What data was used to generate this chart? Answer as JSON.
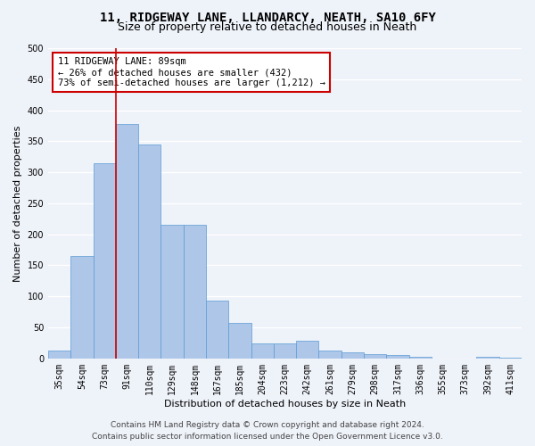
{
  "title": "11, RIDGEWAY LANE, LLANDARCY, NEATH, SA10 6FY",
  "subtitle": "Size of property relative to detached houses in Neath",
  "xlabel": "Distribution of detached houses by size in Neath",
  "ylabel": "Number of detached properties",
  "categories": [
    "35sqm",
    "54sqm",
    "73sqm",
    "91sqm",
    "110sqm",
    "129sqm",
    "148sqm",
    "167sqm",
    "185sqm",
    "204sqm",
    "223sqm",
    "242sqm",
    "261sqm",
    "279sqm",
    "298sqm",
    "317sqm",
    "336sqm",
    "355sqm",
    "373sqm",
    "392sqm",
    "411sqm"
  ],
  "values": [
    13,
    165,
    315,
    378,
    345,
    215,
    215,
    93,
    57,
    24,
    24,
    28,
    13,
    10,
    7,
    5,
    2,
    0,
    0,
    2,
    1
  ],
  "bar_color": "#aec6e8",
  "bar_edge_color": "#5b9bd5",
  "annotation_text": "11 RIDGEWAY LANE: 89sqm\n← 26% of detached houses are smaller (432)\n73% of semi-detached houses are larger (1,212) →",
  "annotation_box_color": "#ffffff",
  "annotation_box_edge_color": "#cc0000",
  "vline_color": "#cc0000",
  "vline_x": 2.5,
  "ylim": [
    0,
    500
  ],
  "yticks": [
    0,
    50,
    100,
    150,
    200,
    250,
    300,
    350,
    400,
    450,
    500
  ],
  "footer_line1": "Contains HM Land Registry data © Crown copyright and database right 2024.",
  "footer_line2": "Contains public sector information licensed under the Open Government Licence v3.0.",
  "background_color": "#eef2f9",
  "plot_background_color": "#eef2f9",
  "grid_color": "#ffffff",
  "title_fontsize": 10,
  "subtitle_fontsize": 9,
  "axis_label_fontsize": 8,
  "tick_fontsize": 7,
  "annotation_fontsize": 7.5,
  "footer_fontsize": 6.5
}
